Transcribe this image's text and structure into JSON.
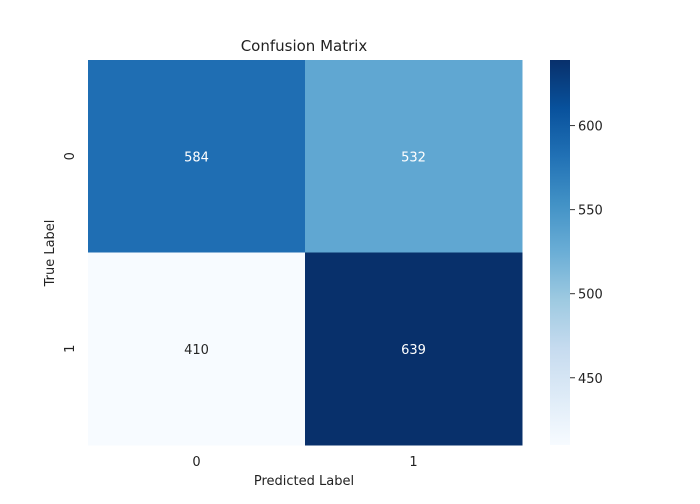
{
  "chart_data": {
    "type": "heatmap",
    "title": "Confusion Matrix",
    "xlabel": "Predicted Label",
    "ylabel": "True Label",
    "x_categories": [
      "0",
      "1"
    ],
    "y_categories": [
      "0",
      "1"
    ],
    "values": [
      [
        584,
        532
      ],
      [
        410,
        639
      ]
    ],
    "cell_labels": [
      [
        "584",
        "532"
      ],
      [
        "410",
        "639"
      ]
    ],
    "colormap": "Blues",
    "vmin": 410,
    "vmax": 639,
    "colorbar_ticks": [
      450,
      500,
      550,
      600
    ],
    "colorbar_tick_labels": [
      "450",
      "500",
      "550",
      "600"
    ],
    "grid": false
  }
}
